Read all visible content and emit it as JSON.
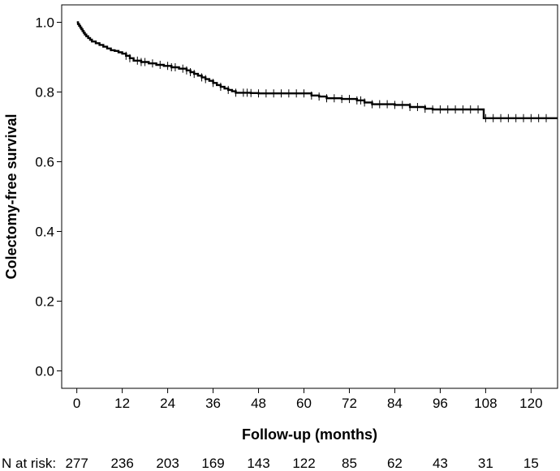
{
  "chart_data": {
    "type": "line",
    "title": "",
    "xlabel": "Follow-up (months)",
    "ylabel": "Colectomy-free survival",
    "xlim": [
      -4,
      127
    ],
    "ylim": [
      -0.05,
      1.05
    ],
    "x_ticks": [
      0,
      12,
      24,
      36,
      48,
      60,
      72,
      84,
      96,
      108,
      120
    ],
    "y_ticks": [
      0.0,
      0.2,
      0.4,
      0.6,
      0.8,
      1.0
    ],
    "y_tick_labels": [
      "0.0",
      "0.2",
      "0.4",
      "0.6",
      "0.8",
      "1.0"
    ],
    "grid": false,
    "series": [
      {
        "x": [
          0,
          0.3,
          0.6,
          0.9,
          1.2,
          1.5,
          1.8,
          2.1,
          2.5,
          3,
          3.5,
          4,
          5,
          6,
          7,
          8,
          9,
          10,
          11,
          12,
          13,
          14,
          15,
          17,
          19,
          21,
          23,
          25,
          27,
          29,
          30,
          31,
          32,
          33,
          34,
          35,
          36,
          37,
          38,
          39,
          40,
          41,
          42,
          44,
          46,
          48,
          52,
          56,
          60,
          62,
          64,
          66,
          70,
          74,
          76,
          78,
          82,
          84,
          88,
          92,
          94,
          98,
          104,
          107,
          107.5,
          127
        ],
        "y": [
          1.0,
          0.995,
          0.99,
          0.985,
          0.98,
          0.975,
          0.97,
          0.965,
          0.96,
          0.955,
          0.95,
          0.945,
          0.94,
          0.935,
          0.93,
          0.925,
          0.92,
          0.918,
          0.914,
          0.91,
          0.904,
          0.897,
          0.89,
          0.886,
          0.882,
          0.878,
          0.875,
          0.871,
          0.867,
          0.862,
          0.857,
          0.852,
          0.847,
          0.842,
          0.837,
          0.832,
          0.826,
          0.82,
          0.815,
          0.81,
          0.806,
          0.802,
          0.798,
          0.798,
          0.797,
          0.796,
          0.796,
          0.796,
          0.796,
          0.79,
          0.787,
          0.782,
          0.78,
          0.776,
          0.77,
          0.765,
          0.765,
          0.763,
          0.757,
          0.752,
          0.75,
          0.75,
          0.75,
          0.75,
          0.725,
          0.725
        ],
        "censor_x": [
          13,
          14,
          16,
          17,
          18,
          20,
          22,
          24,
          25,
          26,
          28,
          29,
          30,
          31,
          33,
          34,
          36,
          38,
          40,
          42,
          44,
          45,
          46,
          48,
          50,
          52,
          54,
          56,
          58,
          60,
          62,
          64,
          66,
          68,
          70,
          72,
          74,
          75,
          76,
          78,
          80,
          82,
          84,
          86,
          88,
          90,
          92,
          94,
          96,
          98,
          100,
          102,
          104,
          106,
          108,
          110,
          112,
          114,
          116,
          118,
          120,
          122,
          124
        ]
      }
    ],
    "risk_table": {
      "label": "N at risk:",
      "times": [
        0,
        12,
        24,
        36,
        48,
        60,
        72,
        84,
        96,
        108,
        120
      ],
      "counts": [
        "277",
        "236",
        "203",
        "169",
        "143",
        "122",
        "85",
        "62",
        "43",
        "31",
        "15"
      ]
    }
  }
}
